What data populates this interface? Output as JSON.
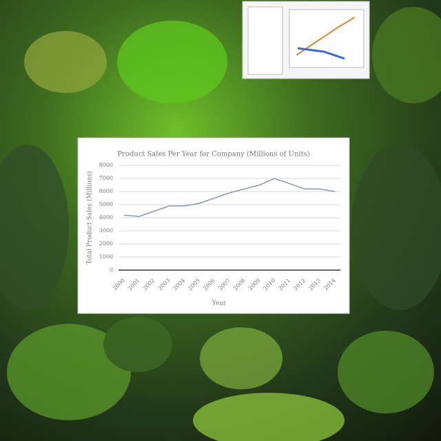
{
  "chart_data": {
    "type": "line",
    "title": "Product Sales Per Year for Company (Millions of Units)",
    "x_label": "Year",
    "y_label": "Total Product Sales (Millions)",
    "categories": [
      "2000",
      "2001",
      "2002",
      "2003",
      "2004",
      "2005",
      "2006",
      "2007",
      "2008",
      "2009",
      "2010",
      "2011",
      "2012",
      "2013",
      "2014"
    ],
    "series": [
      {
        "name": "Sales",
        "color": "#8a97ab",
        "values": [
          4200,
          4100,
          4500,
          4900,
          4900,
          5100,
          5500,
          5900,
          6200,
          6500,
          7000,
          6600,
          6200,
          6200,
          6000
        ]
      }
    ],
    "ylim": [
      0,
      8000
    ],
    "yticks": [
      0,
      1000,
      2000,
      3000,
      4000,
      5000,
      6000,
      7000,
      8000
    ],
    "grid": true
  }
}
